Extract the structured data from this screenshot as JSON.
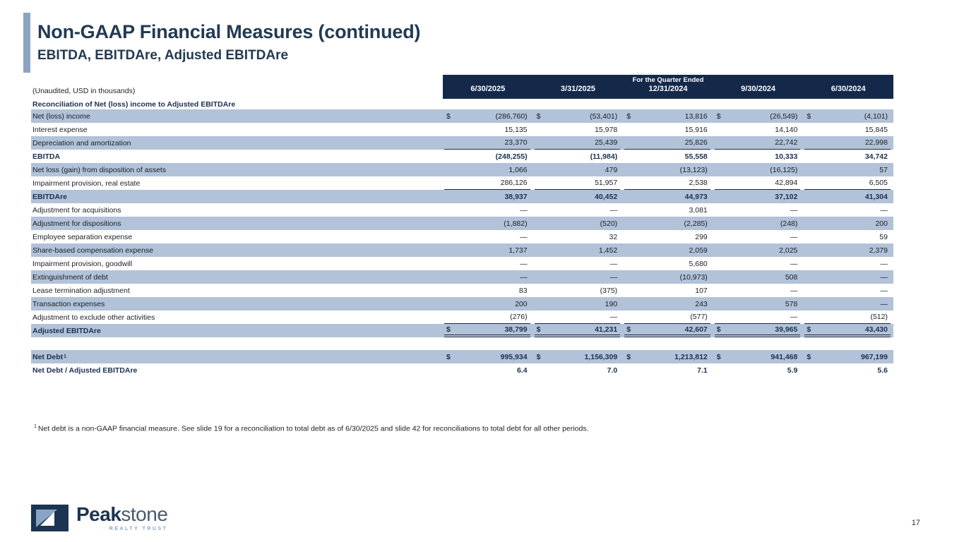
{
  "header": {
    "title": "Non-GAAP Financial Measures (continued)",
    "subtitle": "EBITDA, EBITDAre, Adjusted EBITDAre"
  },
  "colors": {
    "header_band": "#14294a",
    "shaded_row": "#b2c2d8",
    "accent_bar": "#8ba4c4",
    "title_navy": "#223a52"
  },
  "table": {
    "unaudited_note": "(Unaudited, USD in thousands)",
    "header_group": "For the Quarter Ended",
    "columns": [
      "6/30/2025",
      "3/31/2025",
      "12/31/2024",
      "9/30/2024",
      "6/30/2024"
    ],
    "rows": [
      {
        "type": "section",
        "label": "Reconciliation of Net (loss) income to Adjusted EBITDAre"
      },
      {
        "label": "Net (loss) income",
        "shaded": true,
        "dollar": true,
        "values": [
          "(286,760)",
          "(53,401)",
          "13,816",
          "(26,549)",
          "(4,101)"
        ]
      },
      {
        "label": "Interest expense",
        "shaded": false,
        "values": [
          "15,135",
          "15,978",
          "15,916",
          "14,140",
          "15,845"
        ]
      },
      {
        "label": "Depreciation and amortization",
        "shaded": true,
        "underline": "single",
        "values": [
          "23,370",
          "25,439",
          "25,826",
          "22,742",
          "22,998"
        ]
      },
      {
        "label": "EBITDA",
        "shaded": false,
        "bold": true,
        "values": [
          "(248,255)",
          "(11,984)",
          "55,558",
          "10,333",
          "34,742"
        ]
      },
      {
        "label": "Net loss (gain)  from disposition of assets",
        "shaded": true,
        "values": [
          "1,066",
          "479",
          "(13,123)",
          "(16,125)",
          "57"
        ]
      },
      {
        "label": "Impairment provision, real estate",
        "shaded": false,
        "underline": "single",
        "values": [
          "286,126",
          "51,957",
          "2,538",
          "42,894",
          "6,505"
        ]
      },
      {
        "label": "EBITDAre",
        "shaded": true,
        "bold": true,
        "values": [
          "38,937",
          "40,452",
          "44,973",
          "37,102",
          "41,304"
        ]
      },
      {
        "label": "Adjustment for acquisitions",
        "shaded": false,
        "values": [
          "—",
          "—",
          "3,081",
          "—",
          "—"
        ]
      },
      {
        "label": "Adjustment for dispositions",
        "shaded": true,
        "values": [
          "(1,882)",
          "(520)",
          "(2,285)",
          "(248)",
          "200"
        ]
      },
      {
        "label": "Employee separation expense",
        "shaded": false,
        "values": [
          "—",
          "32",
          "299",
          "—",
          "59"
        ]
      },
      {
        "label": "Share-based compensation expense",
        "shaded": true,
        "values": [
          "1,737",
          "1,452",
          "2,059",
          "2,025",
          "2,379"
        ]
      },
      {
        "label": "Impairment provision, goodwill",
        "shaded": false,
        "values": [
          "—",
          "—",
          "5,680",
          "—",
          "—"
        ]
      },
      {
        "label": "Extinguishment of debt",
        "shaded": true,
        "values": [
          "—",
          "—",
          "(10,973)",
          "508",
          "—"
        ]
      },
      {
        "label": "Lease termination adjustment",
        "shaded": false,
        "values": [
          "83",
          "(375)",
          "107",
          "—",
          "—"
        ]
      },
      {
        "label": "Transaction expenses",
        "shaded": true,
        "values": [
          "200",
          "190",
          "243",
          "578",
          "—"
        ]
      },
      {
        "label": "Adjustment to exclude other activities",
        "shaded": false,
        "underline": "single",
        "values": [
          "(276)",
          "—",
          "(577)",
          "—",
          "(512)"
        ]
      },
      {
        "label": "Adjusted EBITDAre",
        "shaded": true,
        "bold": true,
        "dollar": true,
        "underline": "double",
        "values": [
          "38,799",
          "41,231",
          "42,607",
          "39,965",
          "43,430"
        ]
      },
      {
        "type": "spacer"
      },
      {
        "label": "Net Debt",
        "sup": "1",
        "shaded": true,
        "bold": true,
        "dollar": true,
        "values": [
          "995,934",
          "1,156,309",
          "1,213,812",
          "941,468",
          "967,199"
        ]
      },
      {
        "label": "Net Debt / Adjusted EBITDAre",
        "shaded": false,
        "bold": true,
        "values": [
          "6.4",
          "7.0",
          "7.1",
          "5.9",
          "5.6"
        ]
      }
    ]
  },
  "footnote": {
    "marker": "1",
    "text": "Net debt is a non-GAAP financial measure. See slide 19 for a reconciliation to total debt as of 6/30/2025 and slide 42 for reconciliations to total debt for all other periods."
  },
  "footer": {
    "logo_text_bold": "Peak",
    "logo_text_light": "stone",
    "logo_tagline": "REALTY TRUST",
    "page_number": "17"
  }
}
